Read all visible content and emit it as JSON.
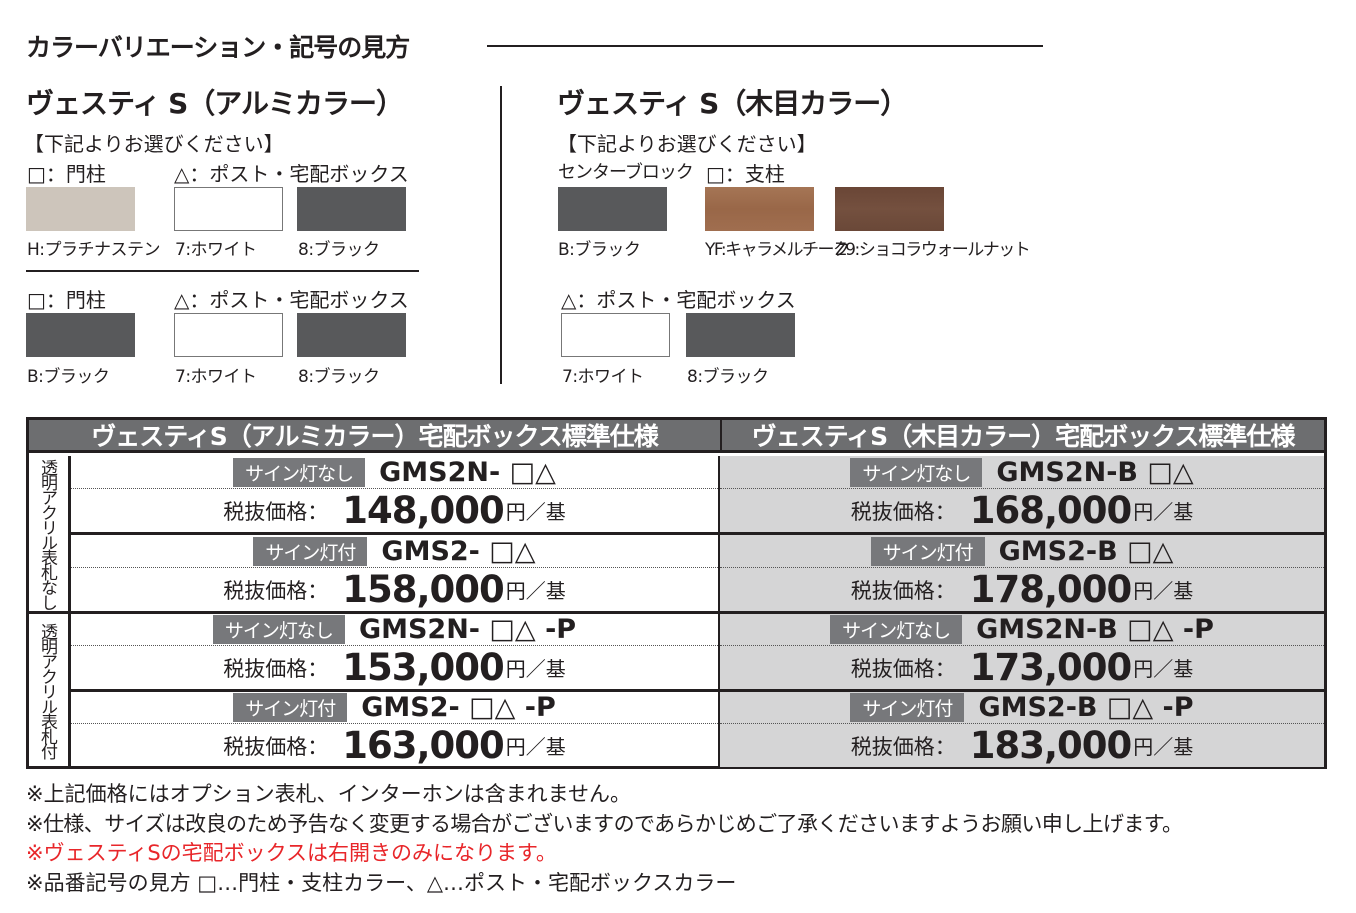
{
  "title": "カラーバリエーション・記号の見方",
  "alumi": {
    "heading": "ヴェスティ S（アルミカラー）",
    "choose": "【下記よりお選びください】",
    "sets": [
      {
        "post_label": "□：門柱",
        "box_label": "△：ポスト・宅配ボックス",
        "swatches": [
          {
            "caption": "H:プラチナステン",
            "color": "#cdc5bb"
          },
          {
            "caption": "7:ホワイト",
            "color": "#ffffff"
          },
          {
            "caption": "8:ブラック",
            "color": "#58595b"
          }
        ]
      },
      {
        "post_label": "□：門柱",
        "box_label": "△：ポスト・宅配ボックス",
        "swatches": [
          {
            "caption": "B:ブラック",
            "color": "#58595b"
          },
          {
            "caption": "7:ホワイト",
            "color": "#ffffff"
          },
          {
            "caption": "8:ブラック",
            "color": "#58595b"
          }
        ]
      }
    ]
  },
  "wood": {
    "heading": "ヴェスティ S（木目カラー）",
    "choose": "【下記よりお選びください】",
    "block_label": "センターブロック",
    "pillar_label": "□：支柱",
    "box_label": "△：ポスト・宅配ボックス",
    "swatches": [
      {
        "caption": "B:ブラック",
        "color": "#58595b"
      },
      {
        "caption": "YF:キャラメルチーク",
        "color": "#a06e4f"
      },
      {
        "caption": "Z9:ショコラウォールナット",
        "color": "#6e4a3a"
      }
    ],
    "box_swatches": [
      {
        "caption": "7:ホワイト",
        "color": "#ffffff"
      },
      {
        "caption": "8:ブラック",
        "color": "#58595b"
      }
    ]
  },
  "table": {
    "left_title": "ヴェスティS（アルミカラー）宅配ボックス標準仕様",
    "right_title": "ヴェスティS（木目カラー）宅配ボックス標準仕様",
    "price_label": "税抜価格：",
    "unit": "円／基",
    "groups": [
      {
        "label": "透明アクリル表札なし",
        "rows": [
          {
            "left": {
              "badge": "サイン灯なし",
              "model": "GMS2N- □△",
              "price": "148,000"
            },
            "right": {
              "badge": "サイン灯なし",
              "model": "GMS2N-B □△",
              "price": "168,000"
            }
          },
          {
            "left": {
              "badge": "サイン灯付",
              "model": "GMS2- □△",
              "price": "158,000"
            },
            "right": {
              "badge": "サイン灯付",
              "model": "GMS2-B □△",
              "price": "178,000"
            }
          }
        ]
      },
      {
        "label": "透明アクリル表札付",
        "rows": [
          {
            "left": {
              "badge": "サイン灯なし",
              "model": "GMS2N- □△ -P",
              "price": "153,000"
            },
            "right": {
              "badge": "サイン灯なし",
              "model": "GMS2N-B □△ -P",
              "price": "173,000"
            }
          },
          {
            "left": {
              "badge": "サイン灯付",
              "model": "GMS2- □△ -P",
              "price": "163,000"
            },
            "right": {
              "badge": "サイン灯付",
              "model": "GMS2-B □△ -P",
              "price": "183,000"
            }
          }
        ]
      }
    ]
  },
  "notes": [
    "※上記価格にはオプション表札、インターホンは含まれません。",
    "※仕様、サイズは改良のため予告なく変更する場合がございますのであらかじめご了承くださいますようお願い申し上げます。",
    "※ヴェスティSの宅配ボックスは右開きのみになります。",
    "※品番記号の見方 □…門柱・支柱カラー、△…ポスト・宅配ボックスカラー"
  ],
  "colors": {
    "header_bg": "#6d6e70",
    "badge_bg": "#77787b",
    "wood_bg": "#d5d5d6",
    "note_red": "#e8262a"
  }
}
